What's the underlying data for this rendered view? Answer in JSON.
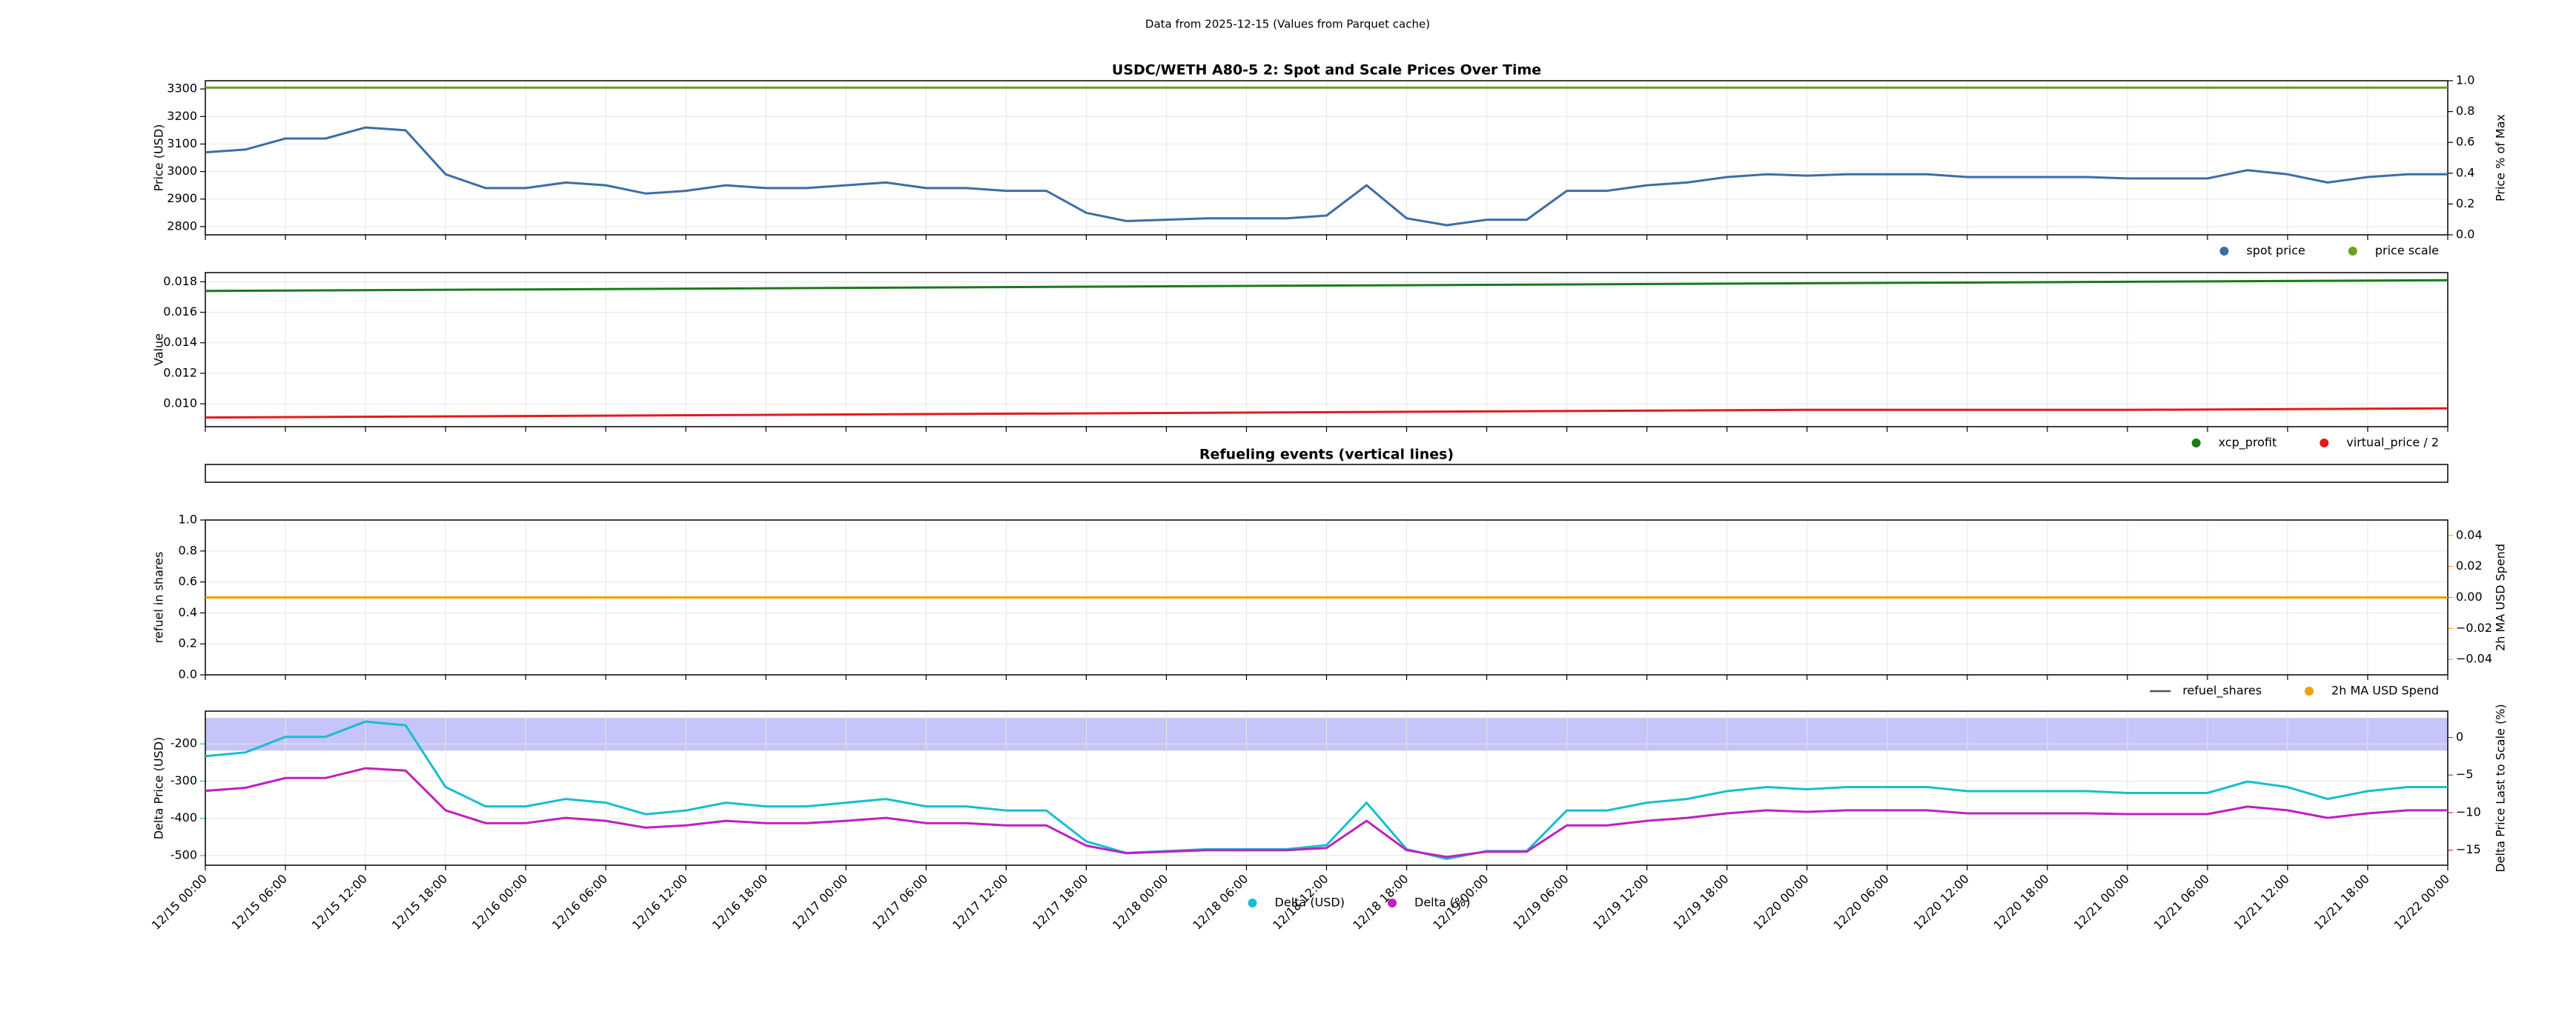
{
  "title": "Data from 2025-12-15 (Values from Parquet cache)",
  "chart_data": [
    {
      "type": "line",
      "title": "USDC/WETH A80-5 2: Spot and Scale Prices Over Time",
      "ylabel": "Price (USD)",
      "y2label": "Price % of Max",
      "xlim": [
        "12/15 00:00",
        "12/22 00:00"
      ],
      "ylim": [
        2770,
        3330
      ],
      "yticks": [
        2800,
        2900,
        3000,
        3100,
        3200,
        3300
      ],
      "y2lim": [
        0,
        1
      ],
      "y2ticks": [
        {
          "value": 0,
          "label": "0.0"
        },
        {
          "value": 0.2,
          "label": "0.2"
        },
        {
          "value": 0.4,
          "label": "0.4"
        },
        {
          "value": 0.6,
          "label": "0.6"
        },
        {
          "value": 0.8,
          "label": "0.8"
        },
        {
          "value": 1,
          "label": "1.0"
        }
      ],
      "grid": true,
      "legend": "lower right",
      "x": [
        "12/15 00:00",
        "12/15 03:00",
        "12/15 06:00",
        "12/15 09:00",
        "12/15 12:00",
        "12/15 15:00",
        "12/15 18:00",
        "12/15 21:00",
        "12/16 00:00",
        "12/16 03:00",
        "12/16 06:00",
        "12/16 09:00",
        "12/16 12:00",
        "12/16 15:00",
        "12/16 18:00",
        "12/16 21:00",
        "12/17 00:00",
        "12/17 03:00",
        "12/17 06:00",
        "12/17 09:00",
        "12/17 12:00",
        "12/17 15:00",
        "12/17 18:00",
        "12/17 21:00",
        "12/18 00:00",
        "12/18 03:00",
        "12/18 06:00",
        "12/18 09:00",
        "12/18 12:00",
        "12/18 15:00",
        "12/18 18:00",
        "12/18 21:00",
        "12/19 00:00",
        "12/19 03:00",
        "12/19 06:00",
        "12/19 09:00",
        "12/19 12:00",
        "12/19 15:00",
        "12/19 18:00",
        "12/19 21:00",
        "12/20 00:00",
        "12/20 03:00",
        "12/20 06:00",
        "12/20 09:00",
        "12/20 12:00",
        "12/20 15:00",
        "12/20 18:00",
        "12/20 21:00",
        "12/21 00:00",
        "12/21 03:00",
        "12/21 06:00",
        "12/21 09:00",
        "12/21 12:00",
        "12/21 15:00",
        "12/21 18:00",
        "12/21 21:00",
        "12/22 00:00"
      ],
      "series": [
        {
          "name": "spot price",
          "color": "#3b6ea8",
          "values": [
            3070,
            3080,
            3120,
            3120,
            3160,
            3150,
            2990,
            2940,
            2940,
            2960,
            2950,
            2920,
            2930,
            2950,
            2940,
            2940,
            2950,
            2960,
            2940,
            2940,
            2930,
            2930,
            2850,
            2820,
            2825,
            2830,
            2830,
            2830,
            2840,
            2950,
            2830,
            2805,
            2825,
            2825,
            2930,
            2930,
            2950,
            2960,
            2980,
            2990,
            2985,
            2990,
            2990,
            2990,
            2980,
            2980,
            2980,
            2980,
            2975,
            2975,
            2975,
            3005,
            2990,
            2960,
            2980,
            2990,
            2990
          ]
        },
        {
          "name": "price scale",
          "color": "#6aa121",
          "x": [
            "12/15 00:00",
            "12/22 00:00"
          ],
          "values": [
            3305,
            3305
          ]
        }
      ]
    },
    {
      "type": "line",
      "ylabel": "Value",
      "xlim": [
        "12/15 00:00",
        "12/22 00:00"
      ],
      "ylim": [
        0.0085,
        0.0186
      ],
      "yticks": [
        {
          "value": 0.01,
          "label": "0.010"
        },
        {
          "value": 0.012,
          "label": "0.012"
        },
        {
          "value": 0.014,
          "label": "0.014"
        },
        {
          "value": 0.016,
          "label": "0.016"
        },
        {
          "value": 0.018,
          "label": "0.018"
        }
      ],
      "grid": true,
      "legend": "lower right",
      "x": [
        "12/15 00:00",
        "12/16 00:00",
        "12/17 00:00",
        "12/18 00:00",
        "12/19 00:00",
        "12/20 00:00",
        "12/21 00:00",
        "12/22 00:00"
      ],
      "series": [
        {
          "name": "xcp_profit",
          "color": "#1a7a1a",
          "values": [
            0.0174,
            0.0175,
            0.0176,
            0.0177,
            0.0178,
            0.0179,
            0.018,
            0.0181
          ]
        },
        {
          "name": "virtual_price / 2",
          "color": "#e31a1c",
          "values": [
            0.0091,
            0.0092,
            0.0093,
            0.0094,
            0.0095,
            0.0096,
            0.0096,
            0.0097
          ]
        }
      ]
    },
    {
      "type": "events",
      "title": "Refueling events (vertical lines)"
    },
    {
      "type": "line",
      "ylabel": "refuel in shares",
      "y2label": "2h MA USD Spend",
      "y2label_color": "#f0a000",
      "xlim": [
        "12/15 00:00",
        "12/22 00:00"
      ],
      "ylim": [
        0,
        1
      ],
      "yticks": [
        {
          "value": 0,
          "label": "0.0"
        },
        {
          "value": 0.2,
          "label": "0.2"
        },
        {
          "value": 0.4,
          "label": "0.4"
        },
        {
          "value": 0.6,
          "label": "0.6"
        },
        {
          "value": 0.8,
          "label": "0.8"
        },
        {
          "value": 1,
          "label": "1.0"
        }
      ],
      "y2lim": [
        -0.05,
        0.05
      ],
      "y2ticks": [
        {
          "value": -0.04,
          "label": "−0.04"
        },
        {
          "value": -0.02,
          "label": "−0.02"
        },
        {
          "value": 0,
          "label": "0.00"
        },
        {
          "value": 0.02,
          "label": "0.02"
        },
        {
          "value": 0.04,
          "label": "0.04"
        }
      ],
      "grid": true,
      "legend": "lower right",
      "x": [
        "12/15 00:00",
        "12/22 00:00"
      ],
      "series": [
        {
          "name": "refuel_shares",
          "color": "#555555",
          "legend_marker": "line",
          "x": [],
          "values": []
        },
        {
          "name": "2h MA USD Spend",
          "color": "#f0a000",
          "axis": "y2",
          "values": [
            0,
            0
          ]
        }
      ]
    },
    {
      "type": "line",
      "ylabel": "Delta Price (USD)",
      "ylabel_color": "#17becf",
      "y2label": "Delta Price Last to Scale (%)",
      "y2label_color": "#c020c0",
      "xlim": [
        "12/15 00:00",
        "12/22 00:00"
      ],
      "xticks": [
        "12/15 00:00",
        "12/15 06:00",
        "12/15 12:00",
        "12/15 18:00",
        "12/16 00:00",
        "12/16 06:00",
        "12/16 12:00",
        "12/16 18:00",
        "12/17 00:00",
        "12/17 06:00",
        "12/17 12:00",
        "12/17 18:00",
        "12/18 00:00",
        "12/18 06:00",
        "12/18 12:00",
        "12/18 18:00",
        "12/19 00:00",
        "12/19 06:00",
        "12/19 12:00",
        "12/19 18:00",
        "12/20 00:00",
        "12/20 06:00",
        "12/20 12:00",
        "12/20 18:00",
        "12/21 00:00",
        "12/21 06:00",
        "12/21 12:00",
        "12/21 18:00",
        "12/22 00:00"
      ],
      "ylim": [
        -526,
        -112
      ],
      "yticks": [
        -500,
        -400,
        -300,
        -200
      ],
      "y2lim": [
        -17,
        3.5
      ],
      "y2ticks": [
        {
          "value": -15,
          "label": "−15"
        },
        {
          "value": -10,
          "label": "−10"
        },
        {
          "value": -5,
          "label": "−5"
        },
        0
      ],
      "band": [
        -218,
        -130
      ],
      "band_color": "#8c8cf5",
      "grid": true,
      "legend": "lower center",
      "x": [
        "12/15 00:00",
        "12/15 03:00",
        "12/15 06:00",
        "12/15 09:00",
        "12/15 12:00",
        "12/15 15:00",
        "12/15 18:00",
        "12/15 21:00",
        "12/16 00:00",
        "12/16 03:00",
        "12/16 06:00",
        "12/16 09:00",
        "12/16 12:00",
        "12/16 15:00",
        "12/16 18:00",
        "12/16 21:00",
        "12/17 00:00",
        "12/17 03:00",
        "12/17 06:00",
        "12/17 09:00",
        "12/17 12:00",
        "12/17 15:00",
        "12/17 18:00",
        "12/17 21:00",
        "12/18 00:00",
        "12/18 03:00",
        "12/18 06:00",
        "12/18 09:00",
        "12/18 12:00",
        "12/18 15:00",
        "12/18 18:00",
        "12/18 21:00",
        "12/19 00:00",
        "12/19 03:00",
        "12/19 06:00",
        "12/19 09:00",
        "12/19 12:00",
        "12/19 15:00",
        "12/19 18:00",
        "12/19 21:00",
        "12/20 00:00",
        "12/20 03:00",
        "12/20 06:00",
        "12/20 09:00",
        "12/20 12:00",
        "12/20 15:00",
        "12/20 18:00",
        "12/20 21:00",
        "12/21 00:00",
        "12/21 03:00",
        "12/21 06:00",
        "12/21 09:00",
        "12/21 12:00",
        "12/21 15:00",
        "12/21 18:00",
        "12/21 21:00",
        "12/22 00:00"
      ],
      "series": [
        {
          "name": "Delta (USD)",
          "color": "#17becf",
          "values": [
            -233,
            -223,
            -181,
            -181,
            -140,
            -150,
            -316,
            -368,
            -368,
            -348,
            -358,
            -389,
            -379,
            -358,
            -368,
            -368,
            -358,
            -348,
            -368,
            -368,
            -379,
            -379,
            -462,
            -493,
            -488,
            -483,
            -483,
            -483,
            -472,
            -358,
            -483,
            -509,
            -488,
            -488,
            -379,
            -379,
            -358,
            -348,
            -327,
            -316,
            -322,
            -316,
            -316,
            -316,
            -327,
            -327,
            -327,
            -327,
            -332,
            -332,
            -332,
            -301,
            -316,
            -348,
            -327,
            -316,
            -316
          ]
        },
        {
          "name": "Delta (%)",
          "color": "#c020c0",
          "axis": "y2",
          "values": [
            -7.1,
            -6.7,
            -5.4,
            -5.4,
            -4.1,
            -4.4,
            -9.7,
            -11.4,
            -11.4,
            -10.7,
            -11.1,
            -12.0,
            -11.7,
            -11.1,
            -11.4,
            -11.4,
            -11.1,
            -10.7,
            -11.4,
            -11.4,
            -11.7,
            -11.7,
            -14.4,
            -15.4,
            -15.2,
            -15.0,
            -15.0,
            -15.0,
            -14.7,
            -11.1,
            -15.0,
            -15.9,
            -15.2,
            -15.2,
            -11.7,
            -11.7,
            -11.1,
            -10.7,
            -10.1,
            -9.7,
            -9.9,
            -9.7,
            -9.7,
            -9.7,
            -10.1,
            -10.1,
            -10.1,
            -10.1,
            -10.2,
            -10.2,
            -10.2,
            -9.2,
            -9.7,
            -10.7,
            -10.1,
            -9.7,
            -9.7
          ]
        }
      ]
    }
  ]
}
